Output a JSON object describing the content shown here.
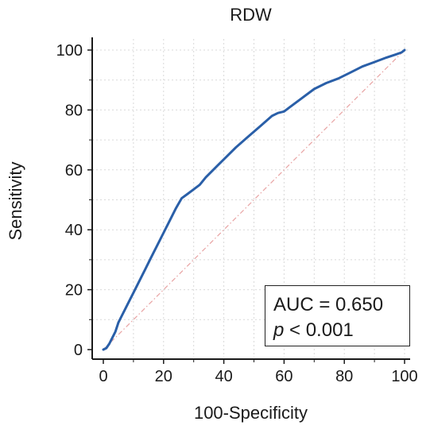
{
  "chart_data": {
    "type": "line",
    "title": "RDW",
    "xlabel": "100-Specificity",
    "ylabel": "Sensitivity",
    "xlim": [
      0,
      100
    ],
    "ylim": [
      0,
      100
    ],
    "x_ticks": [
      "0",
      "20",
      "40",
      "60",
      "80",
      "100"
    ],
    "y_ticks": [
      "0",
      "20",
      "40",
      "60",
      "80",
      "100"
    ],
    "grid": true,
    "series": [
      {
        "x": [
          0,
          1,
          2,
          3,
          4,
          5,
          6,
          8,
          10,
          12,
          14,
          16,
          18,
          20,
          22,
          24,
          26,
          28,
          30,
          32,
          34,
          36,
          38,
          40,
          44,
          48,
          52,
          56,
          58,
          60,
          62,
          66,
          70,
          74,
          78,
          82,
          86,
          90,
          94,
          97,
          99,
          100
        ],
        "y": [
          0,
          0.5,
          2,
          4,
          6,
          9,
          11,
          15,
          19,
          23,
          27,
          31,
          35,
          39,
          43,
          47,
          50.5,
          52,
          53.5,
          55,
          57.5,
          59.5,
          61.5,
          63.5,
          67.5,
          71,
          74.5,
          78,
          79,
          79.5,
          81,
          84,
          87,
          89,
          90.5,
          92.5,
          94.5,
          96,
          97.5,
          98.5,
          99.2,
          100
        ],
        "color": "#2a5fa8"
      },
      {
        "x": [
          0,
          100
        ],
        "y": [
          0,
          100
        ],
        "color": "#e8a3a3",
        "style": "dash-dot"
      }
    ],
    "annotation": {
      "auc_text": "AUC = 0.650",
      "p_symbol": "p",
      "p_rest": " < 0.001"
    }
  }
}
